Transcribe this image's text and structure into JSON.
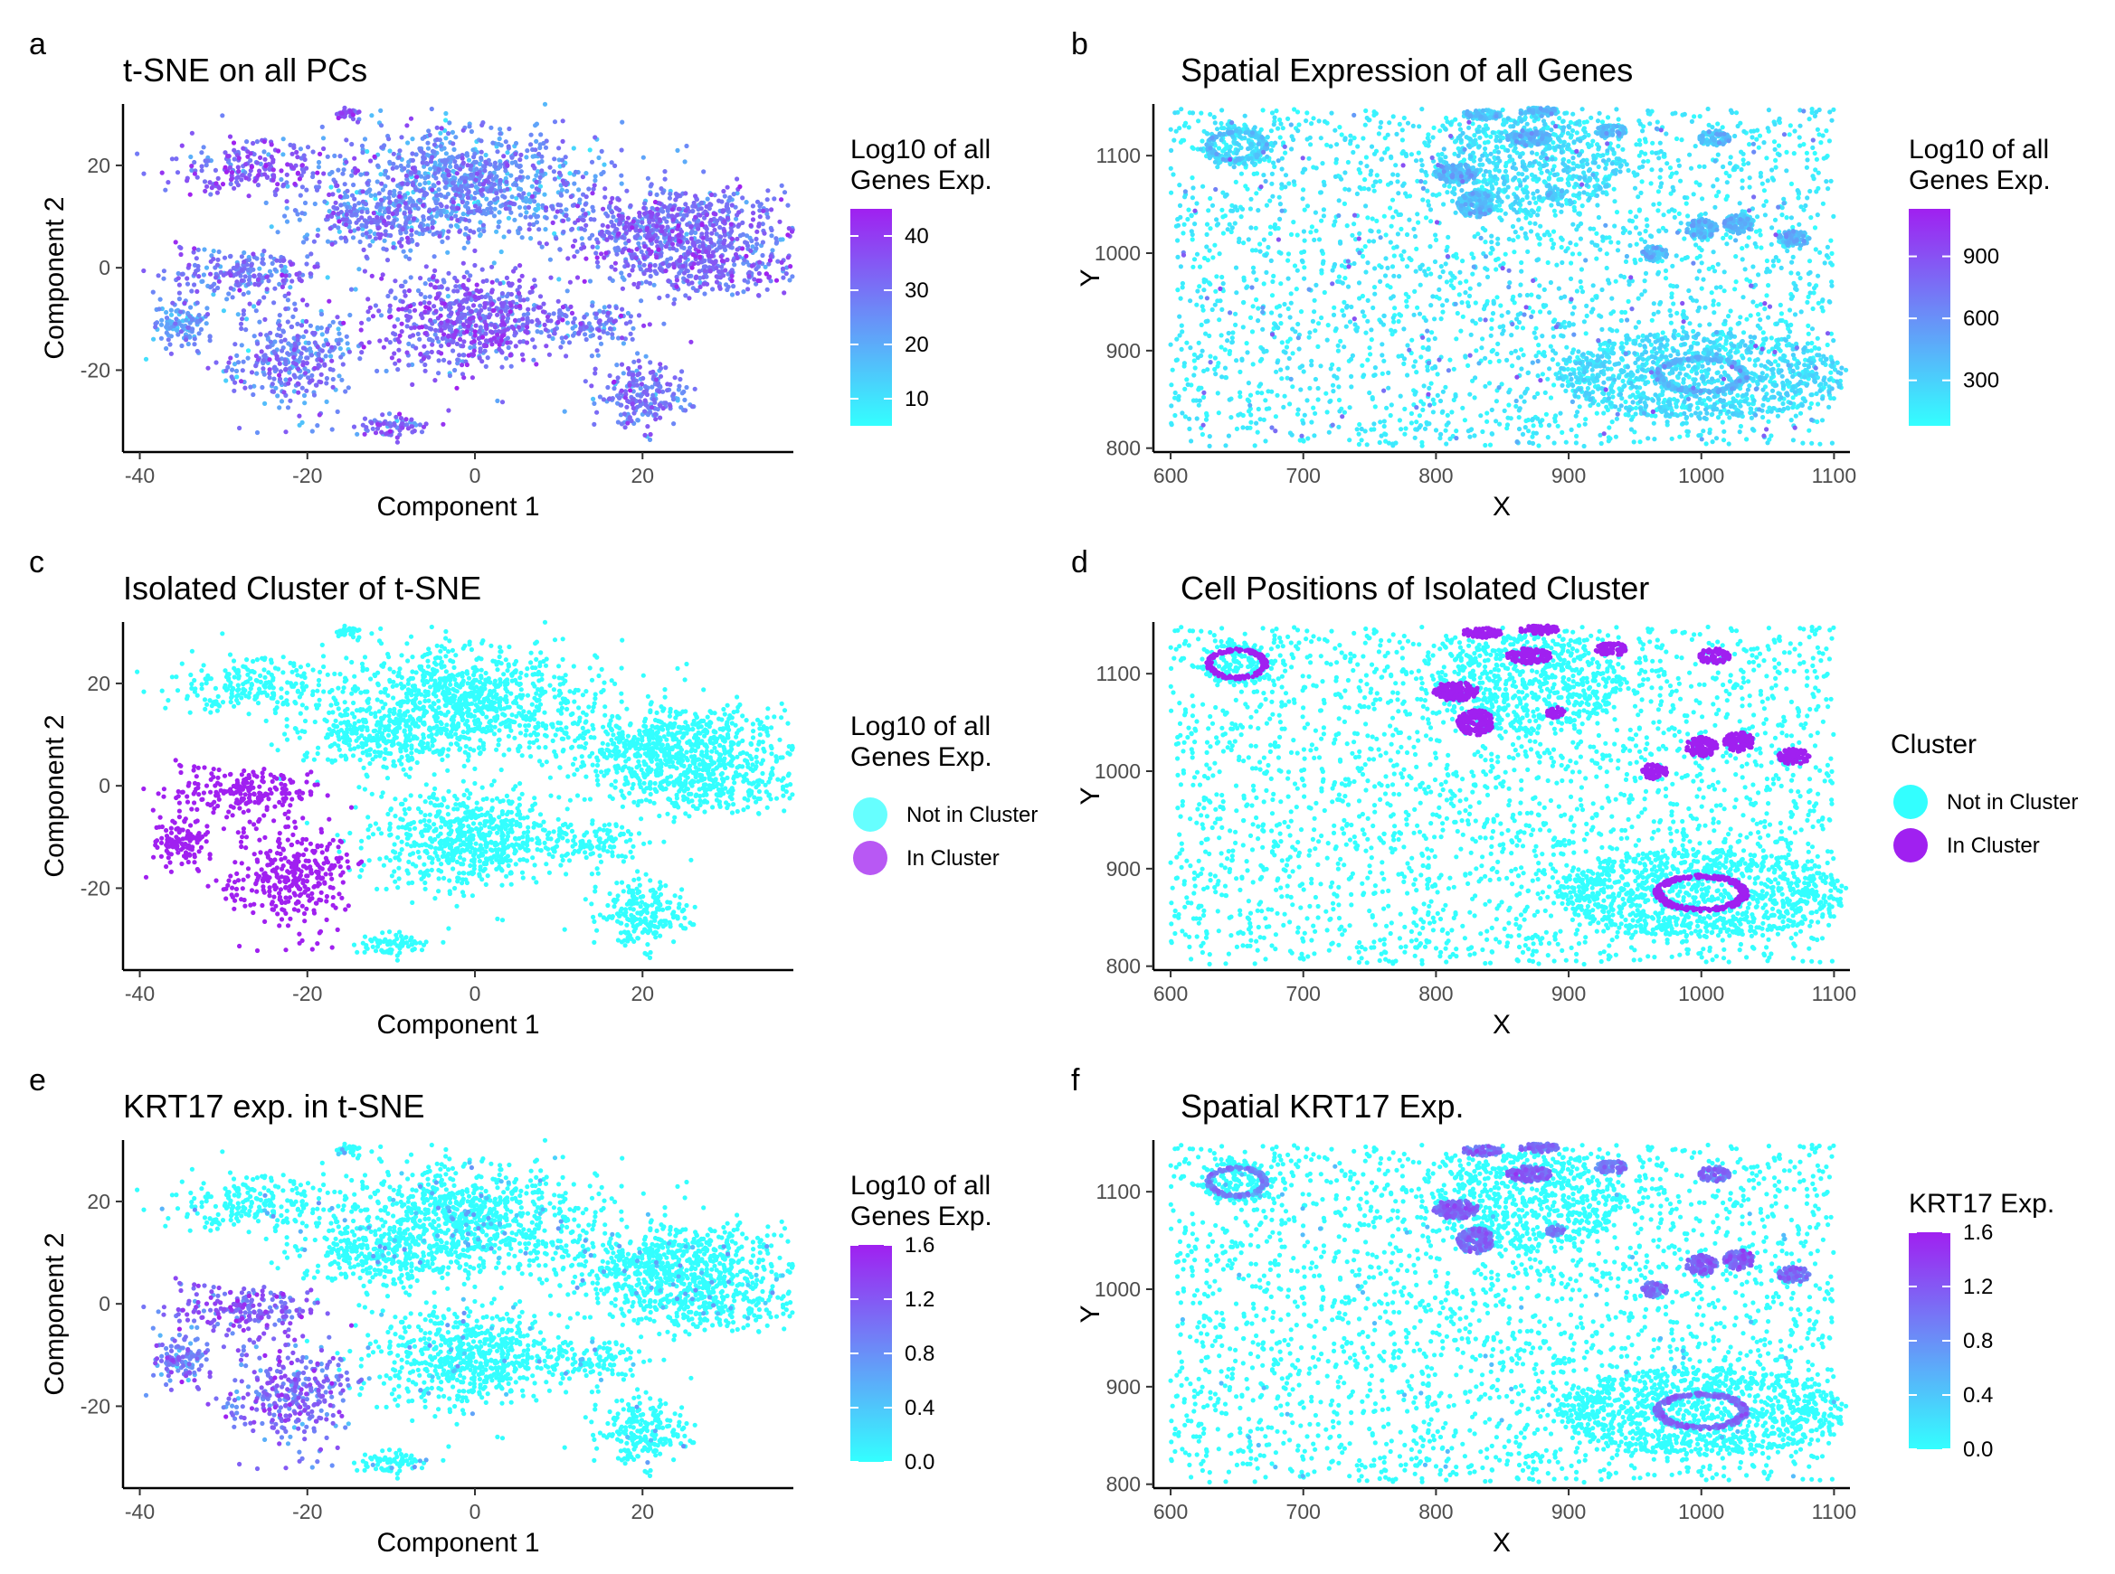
{
  "figure": {
    "panel_letters": [
      "a",
      "b",
      "c",
      "d",
      "e",
      "f"
    ]
  },
  "chart_data": [
    {
      "panel": "a",
      "type": "scatter",
      "title": "t-SNE on all PCs",
      "xlabel": "Component 1",
      "ylabel": "Component 2",
      "xlim": [
        -42,
        38
      ],
      "ylim": [
        -36,
        32
      ],
      "xticks": [
        -40,
        -20,
        0,
        20
      ],
      "yticks": [
        -20,
        0,
        20
      ],
      "legend": {
        "kind": "gradient",
        "title_lines": [
          "Log10  of all",
          "Genes Exp."
        ],
        "range": [
          5,
          45
        ],
        "ticks": [
          10,
          20,
          30,
          40
        ],
        "colors": [
          "#33ffff",
          "#a020f0"
        ]
      },
      "color_by": "expression",
      "background_level": 0.5
    },
    {
      "panel": "b",
      "type": "scatter",
      "title": "Spatial Expression of all Genes",
      "xlabel": "X",
      "ylabel": "Y",
      "xlim": [
        587,
        1112
      ],
      "ylim": [
        796,
        1153
      ],
      "xticks": [
        600,
        700,
        800,
        900,
        1000,
        1100
      ],
      "yticks": [
        800,
        900,
        1000,
        1100
      ],
      "legend": {
        "kind": "gradient",
        "title_lines": [
          "Log10 of all",
          " Genes Exp."
        ],
        "range": [
          80,
          1130
        ],
        "ticks": [
          300,
          600,
          900
        ],
        "colors": [
          "#33ffff",
          "#a020f0"
        ]
      },
      "color_by": "expression",
      "background_level": 0.12
    },
    {
      "panel": "c",
      "type": "scatter",
      "title": "Isolated Cluster of t-SNE",
      "xlabel": "Component 1",
      "ylabel": "Component 2",
      "xlim": [
        -42,
        38
      ],
      "ylim": [
        -36,
        32
      ],
      "xticks": [
        -40,
        -20,
        0,
        20
      ],
      "yticks": [
        -20,
        0,
        20
      ],
      "legend": {
        "kind": "categorical",
        "title_lines": [
          "Log10 of all",
          "Genes Exp."
        ],
        "items": [
          {
            "label": "Not in Cluster",
            "color": "#33ffff"
          },
          {
            "label": "In Cluster",
            "color": "#a020f0"
          }
        ]
      },
      "color_by": "cluster"
    },
    {
      "panel": "d",
      "type": "scatter",
      "title": "Cell Positions of Isolated Cluster",
      "xlabel": "X",
      "ylabel": "Y",
      "xlim": [
        587,
        1112
      ],
      "ylim": [
        796,
        1153
      ],
      "xticks": [
        600,
        700,
        800,
        900,
        1000,
        1100
      ],
      "yticks": [
        800,
        900,
        1000,
        1100
      ],
      "legend": {
        "kind": "categorical",
        "title_lines": [
          "Cluster"
        ],
        "items": [
          {
            "label": "Not in Cluster",
            "color": "#33ffff"
          },
          {
            "label": "In Cluster",
            "color": "#a020f0"
          }
        ]
      },
      "color_by": "cluster"
    },
    {
      "panel": "e",
      "type": "scatter",
      "title": "KRT17 exp. in t-SNE",
      "xlabel": "Component 1",
      "ylabel": "Component 2",
      "xlim": [
        -42,
        38
      ],
      "ylim": [
        -36,
        32
      ],
      "xticks": [
        -40,
        -20,
        0,
        20
      ],
      "yticks": [
        -20,
        0,
        20
      ],
      "legend": {
        "kind": "gradient",
        "title_lines": [
          "Log10 of all",
          "Genes Exp."
        ],
        "range": [
          0,
          1.6
        ],
        "ticks": [
          "0.0",
          "0.4",
          "0.8",
          "1.2",
          "1.6"
        ],
        "colors": [
          "#33ffff",
          "#a020f0"
        ]
      },
      "color_by": "krt17",
      "background_level": 0.04
    },
    {
      "panel": "f",
      "type": "scatter",
      "title": "Spatial KRT17 Exp.",
      "xlabel": "X",
      "ylabel": "Y",
      "xlim": [
        587,
        1112
      ],
      "ylim": [
        796,
        1153
      ],
      "xticks": [
        600,
        700,
        800,
        900,
        1000,
        1100
      ],
      "yticks": [
        800,
        900,
        1000,
        1100
      ],
      "legend": {
        "kind": "gradient",
        "title_lines": [
          "KRT17 Exp."
        ],
        "range": [
          0,
          1.6
        ],
        "ticks": [
          "0.0",
          "0.4",
          "0.8",
          "1.2",
          "1.6"
        ],
        "colors": [
          "#33ffff",
          "#a020f0"
        ]
      },
      "color_by": "krt17",
      "background_level": 0.04
    }
  ],
  "tsne_clusters": [
    {
      "name": "top-left-arm",
      "center": [
        -26,
        19
      ],
      "sd": [
        4.5,
        2.8
      ],
      "n": 220,
      "level": 0.72,
      "in_cluster": false
    },
    {
      "name": "small-top",
      "center": [
        -15,
        30
      ],
      "sd": [
        1.2,
        0.6
      ],
      "n": 25,
      "level": 0.75,
      "in_cluster": false
    },
    {
      "name": "center-top",
      "center": [
        -1,
        17
      ],
      "sd": [
        8,
        5.5
      ],
      "n": 900,
      "level": 0.48,
      "in_cluster": false
    },
    {
      "name": "bridge",
      "center": [
        -10,
        9
      ],
      "sd": [
        6,
        3
      ],
      "n": 280,
      "level": 0.55,
      "in_cluster": false
    },
    {
      "name": "right-upper",
      "center": [
        24,
        8
      ],
      "sd": [
        7,
        4
      ],
      "n": 650,
      "level": 0.62,
      "in_cluster": false
    },
    {
      "name": "right-lower",
      "center": [
        27,
        0
      ],
      "sd": [
        6,
        3
      ],
      "n": 300,
      "level": 0.65,
      "in_cluster": false
    },
    {
      "name": "center-lower",
      "center": [
        -1,
        -10
      ],
      "sd": [
        5.5,
        5
      ],
      "n": 650,
      "level": 0.68,
      "in_cluster": false
    },
    {
      "name": "right-small",
      "center": [
        14,
        -11
      ],
      "sd": [
        3,
        1.8
      ],
      "n": 120,
      "level": 0.55,
      "in_cluster": false
    },
    {
      "name": "bottom-small",
      "center": [
        -10,
        -31
      ],
      "sd": [
        2.3,
        1.1
      ],
      "n": 70,
      "level": 0.7,
      "in_cluster": false
    },
    {
      "name": "bottom-right",
      "center": [
        20,
        -25
      ],
      "sd": [
        2.8,
        3.2
      ],
      "n": 220,
      "level": 0.6,
      "in_cluster": false
    },
    {
      "name": "left-top",
      "center": [
        -28,
        -1
      ],
      "sd": [
        4,
        2.8
      ],
      "n": 220,
      "level": 0.6,
      "in_cluster": true,
      "krt17": 0.7
    },
    {
      "name": "left-small",
      "center": [
        -35,
        -11
      ],
      "sd": [
        1.8,
        2.2
      ],
      "n": 120,
      "level": 0.45,
      "in_cluster": true,
      "krt17": 0.55
    },
    {
      "name": "left-lower",
      "center": [
        -22,
        -18
      ],
      "sd": [
        3.5,
        5
      ],
      "n": 330,
      "level": 0.55,
      "in_cluster": true,
      "krt17": 0.65
    }
  ],
  "spatial_hotspots": [
    {
      "center": [
        650,
        1110
      ],
      "r": [
        22,
        15
      ],
      "ring": true,
      "level": 0.5
    },
    {
      "center": [
        815,
        1082
      ],
      "r": [
        17,
        10
      ],
      "level": 0.65
    },
    {
      "center": [
        870,
        1118
      ],
      "r": [
        17,
        8
      ],
      "level": 0.65
    },
    {
      "center": [
        830,
        1050
      ],
      "r": [
        14,
        13
      ],
      "level": 0.6
    },
    {
      "center": [
        835,
        1142
      ],
      "r": [
        16,
        5
      ],
      "level": 0.6
    },
    {
      "center": [
        878,
        1145
      ],
      "r": [
        15,
        5
      ],
      "level": 0.6
    },
    {
      "center": [
        932,
        1125
      ],
      "r": [
        12,
        7
      ],
      "level": 0.55
    },
    {
      "center": [
        890,
        1060
      ],
      "r": [
        7,
        6
      ],
      "level": 0.5
    },
    {
      "center": [
        1010,
        1118
      ],
      "r": [
        12,
        8
      ],
      "level": 0.6
    },
    {
      "center": [
        965,
        1000
      ],
      "r": [
        10,
        8
      ],
      "level": 0.6
    },
    {
      "center": [
        1000,
        1025
      ],
      "r": [
        12,
        10
      ],
      "level": 0.65
    },
    {
      "center": [
        1028,
        1030
      ],
      "r": [
        12,
        10
      ],
      "level": 0.65
    },
    {
      "center": [
        1070,
        1015
      ],
      "r": [
        12,
        8
      ],
      "level": 0.6
    },
    {
      "center": [
        1000,
        875
      ],
      "r": [
        34,
        18
      ],
      "ring": true,
      "level": 0.6
    }
  ]
}
